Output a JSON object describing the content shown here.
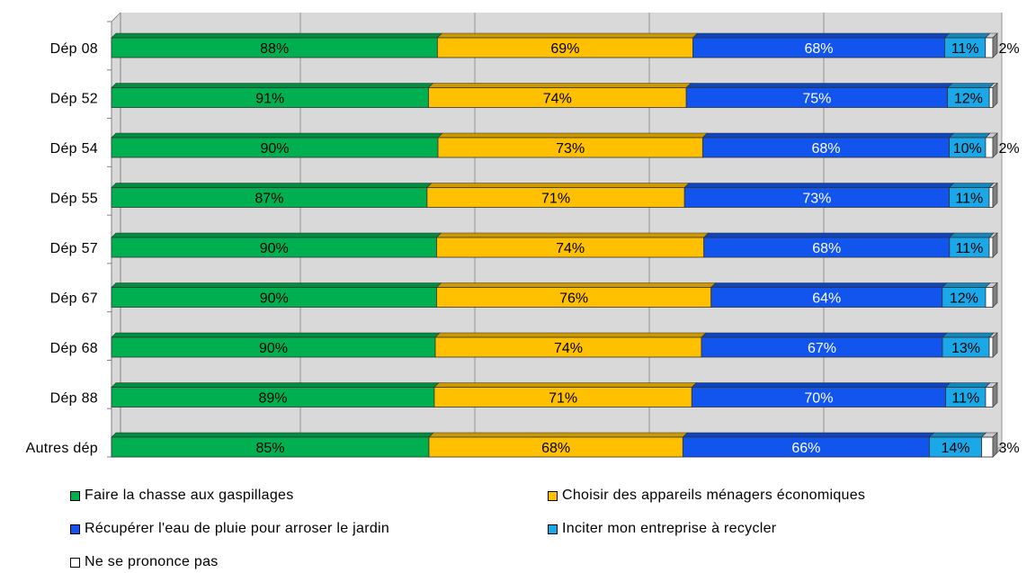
{
  "chart_data": {
    "type": "bar",
    "orientation": "horizontal",
    "stacked": true,
    "title": "",
    "xlabel": "",
    "ylabel": "",
    "grid": true,
    "legend_position": "bottom",
    "categories": [
      "Dép 08",
      "Dép 52",
      "Dép 54",
      "Dép 55",
      "Dép 57",
      "Dép 67",
      "Dép 68",
      "Dép 88",
      "Autres dép"
    ],
    "series": [
      {
        "name": "Faire la chasse aux gaspillages",
        "color": "#00B050",
        "values": [
          88,
          91,
          90,
          87,
          90,
          90,
          90,
          89,
          85
        ]
      },
      {
        "name": "Choisir des appareils ménagers économiques",
        "color": "#FFC000",
        "values": [
          69,
          74,
          73,
          71,
          74,
          76,
          74,
          71,
          68
        ]
      },
      {
        "name": "Récupérer l'eau de pluie pour arroser le jardin",
        "color": "#1155EE",
        "values": [
          68,
          75,
          68,
          73,
          68,
          64,
          67,
          70,
          66
        ]
      },
      {
        "name": "Inciter mon entreprise à recycler",
        "color": "#1AA8E8",
        "values": [
          11,
          12,
          10,
          11,
          11,
          12,
          13,
          11,
          14
        ]
      },
      {
        "name": "Ne se prononce pas",
        "color": "#FFFFFF",
        "values": [
          2,
          1,
          2,
          1,
          1,
          2,
          1,
          2,
          3
        ]
      }
    ],
    "data_labels": [
      [
        "88%",
        "69%",
        "68%",
        "11%",
        "2%"
      ],
      [
        "91%",
        "74%",
        "75%",
        "12%",
        ""
      ],
      [
        "90%",
        "73%",
        "68%",
        "10%",
        "2%"
      ],
      [
        "87%",
        "71%",
        "73%",
        "11%",
        ""
      ],
      [
        "90%",
        "74%",
        "68%",
        "11%",
        ""
      ],
      [
        "90%",
        "76%",
        "64%",
        "12%",
        ""
      ],
      [
        "90%",
        "74%",
        "67%",
        "13%",
        ""
      ],
      [
        "89%",
        "71%",
        "70%",
        "11%",
        ""
      ],
      [
        "85%",
        "68%",
        "66%",
        "14%",
        "3%"
      ]
    ]
  }
}
